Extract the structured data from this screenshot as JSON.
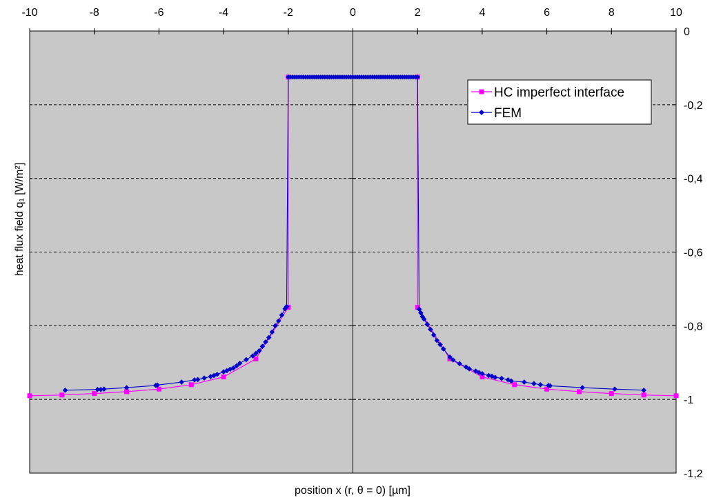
{
  "chart_data": {
    "type": "line",
    "xlabel": "position x (r, θ = 0) [µm]",
    "ylabel": "heat flux field q₁ [W/m²]",
    "xlim": [
      -10,
      10
    ],
    "ylim": [
      -1.2,
      0
    ],
    "x_ticks": [
      -10,
      -8,
      -6,
      -4,
      -2,
      0,
      2,
      4,
      6,
      8,
      10
    ],
    "x_tick_labels": [
      "-10",
      "-8",
      "-6",
      "-4",
      "-2",
      "0",
      "2",
      "4",
      "6",
      "8",
      "10"
    ],
    "y_ticks": [
      0,
      -0.2,
      -0.4,
      -0.6,
      -0.8,
      -1,
      -1.2
    ],
    "y_tick_labels": [
      "0",
      "-0,2",
      "-0,4",
      "-0,6",
      "-0,8",
      "-1",
      "-1,2"
    ],
    "x_axis_position": "top",
    "y_axis_position": "right",
    "gridlines": "horizontal dashed",
    "plot_background": "#c8c8c8",
    "legend_position": "top-right",
    "series": [
      {
        "name": "HC imperfect interface",
        "color": "#ff00ff",
        "marker": "square",
        "x": [
          -10,
          -9,
          -8,
          -7,
          -6,
          -5,
          -4,
          -3,
          -2,
          -2,
          2,
          2,
          3,
          4,
          5,
          6,
          7,
          8,
          9,
          10
        ],
        "y": [
          -0.99,
          -0.988,
          -0.984,
          -0.979,
          -0.972,
          -0.96,
          -0.939,
          -0.89,
          -0.75,
          -0.125,
          -0.125,
          -0.75,
          -0.89,
          -0.939,
          -0.96,
          -0.972,
          -0.979,
          -0.984,
          -0.988,
          -0.99
        ]
      },
      {
        "name": "FEM",
        "color": "#0000cc",
        "marker": "diamond",
        "x": [
          -8.9,
          -7.9,
          -7.8,
          -7.7,
          -7,
          -6.1,
          -6.05,
          -5.3,
          -4.9,
          -4.8,
          -4.6,
          -4.4,
          -4.3,
          -4.2,
          -4,
          -3.9,
          -3.8,
          -3.7,
          -3.6,
          -3.5,
          -3.3,
          -3.1,
          -3,
          -2.9,
          -2.8,
          -2.7,
          -2.6,
          -2.5,
          -2.4,
          -2.3,
          -2.2,
          -2.1,
          -2.05,
          -2,
          2,
          2.05,
          2.1,
          2.15,
          2.2,
          2.3,
          2.4,
          2.5,
          2.6,
          2.7,
          2.8,
          3,
          3.1,
          3.3,
          3.5,
          3.6,
          3.8,
          3.9,
          4,
          4.2,
          4.3,
          4.4,
          4.6,
          4.8,
          4.9,
          5.3,
          5.6,
          5.8,
          6.05,
          6.1,
          7.1,
          8.1,
          9
        ],
        "y": [
          -0.975,
          -0.973,
          -0.973,
          -0.972,
          -0.968,
          -0.962,
          -0.961,
          -0.953,
          -0.947,
          -0.946,
          -0.942,
          -0.938,
          -0.935,
          -0.932,
          -0.925,
          -0.922,
          -0.918,
          -0.915,
          -0.909,
          -0.902,
          -0.892,
          -0.882,
          -0.875,
          -0.868,
          -0.856,
          -0.844,
          -0.832,
          -0.817,
          -0.8,
          -0.787,
          -0.771,
          -0.754,
          -0.748,
          -0.125,
          -0.125,
          -0.755,
          -0.765,
          -0.775,
          -0.782,
          -0.796,
          -0.81,
          -0.825,
          -0.84,
          -0.851,
          -0.863,
          -0.885,
          -0.893,
          -0.903,
          -0.912,
          -0.917,
          -0.923,
          -0.927,
          -0.93,
          -0.935,
          -0.937,
          -0.94,
          -0.943,
          -0.947,
          -0.95,
          -0.953,
          -0.957,
          -0.96,
          -0.962,
          -0.963,
          -0.968,
          -0.972,
          -0.975
        ]
      }
    ]
  }
}
